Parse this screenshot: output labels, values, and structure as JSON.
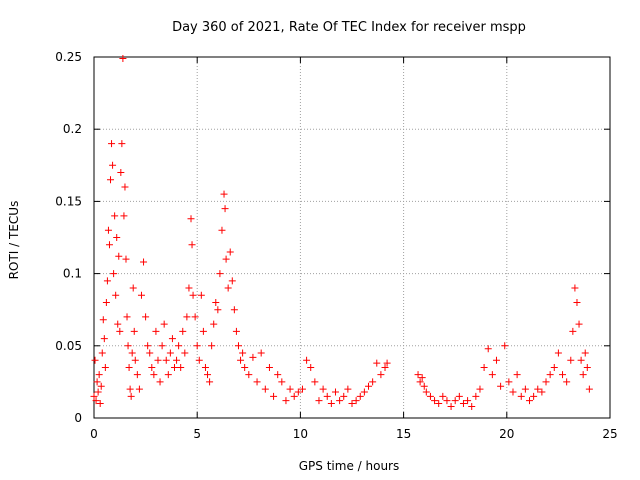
{
  "chart_data": {
    "type": "scatter",
    "title": "Day 360 of 2021, Rate Of TEC Index for receiver mspp",
    "xlabel": "GPS time / hours",
    "ylabel": "ROTI / TECUs",
    "xlim": [
      0,
      25
    ],
    "ylim": [
      0,
      0.25
    ],
    "x_ticks": [
      "0",
      "5",
      "10",
      "15",
      "20",
      "25"
    ],
    "y_ticks": [
      "0",
      "0.05",
      "0.1",
      "0.15",
      "0.2",
      "0.25"
    ],
    "grid": true,
    "marker": "+",
    "marker_color": "#ff0000",
    "series": [
      {
        "points": [
          [
            0.0,
            0.015
          ],
          [
            0.05,
            0.04
          ],
          [
            0.1,
            0.012
          ],
          [
            0.15,
            0.025
          ],
          [
            0.2,
            0.018
          ],
          [
            0.25,
            0.03
          ],
          [
            0.3,
            0.01
          ],
          [
            0.35,
            0.022
          ],
          [
            0.4,
            0.045
          ],
          [
            0.45,
            0.068
          ],
          [
            0.5,
            0.055
          ],
          [
            0.55,
            0.035
          ],
          [
            0.6,
            0.08
          ],
          [
            0.65,
            0.095
          ],
          [
            0.7,
            0.13
          ],
          [
            0.75,
            0.12
          ],
          [
            0.8,
            0.165
          ],
          [
            0.85,
            0.19
          ],
          [
            0.9,
            0.175
          ],
          [
            0.95,
            0.1
          ],
          [
            1.0,
            0.14
          ],
          [
            1.05,
            0.085
          ],
          [
            1.1,
            0.125
          ],
          [
            1.15,
            0.065
          ],
          [
            1.2,
            0.112
          ],
          [
            1.25,
            0.06
          ],
          [
            1.3,
            0.17
          ],
          [
            1.35,
            0.19
          ],
          [
            1.4,
            0.249
          ],
          [
            1.45,
            0.14
          ],
          [
            1.5,
            0.16
          ],
          [
            1.55,
            0.11
          ],
          [
            1.6,
            0.07
          ],
          [
            1.65,
            0.05
          ],
          [
            1.7,
            0.035
          ],
          [
            1.75,
            0.02
          ],
          [
            1.8,
            0.015
          ],
          [
            1.85,
            0.045
          ],
          [
            1.9,
            0.09
          ],
          [
            1.95,
            0.06
          ],
          [
            2.0,
            0.04
          ],
          [
            2.1,
            0.03
          ],
          [
            2.2,
            0.02
          ],
          [
            2.3,
            0.085
          ],
          [
            2.4,
            0.108
          ],
          [
            2.5,
            0.07
          ],
          [
            2.6,
            0.05
          ],
          [
            2.7,
            0.045
          ],
          [
            2.8,
            0.035
          ],
          [
            2.9,
            0.03
          ],
          [
            3.0,
            0.06
          ],
          [
            3.1,
            0.04
          ],
          [
            3.2,
            0.025
          ],
          [
            3.3,
            0.05
          ],
          [
            3.4,
            0.065
          ],
          [
            3.5,
            0.04
          ],
          [
            3.6,
            0.03
          ],
          [
            3.7,
            0.045
          ],
          [
            3.8,
            0.055
          ],
          [
            3.9,
            0.035
          ],
          [
            4.0,
            0.04
          ],
          [
            4.1,
            0.05
          ],
          [
            4.2,
            0.035
          ],
          [
            4.3,
            0.06
          ],
          [
            4.4,
            0.045
          ],
          [
            4.5,
            0.07
          ],
          [
            4.6,
            0.09
          ],
          [
            4.7,
            0.138
          ],
          [
            4.75,
            0.12
          ],
          [
            4.8,
            0.085
          ],
          [
            4.9,
            0.07
          ],
          [
            5.0,
            0.05
          ],
          [
            5.1,
            0.04
          ],
          [
            5.2,
            0.085
          ],
          [
            5.3,
            0.06
          ],
          [
            5.4,
            0.035
          ],
          [
            5.5,
            0.03
          ],
          [
            5.6,
            0.025
          ],
          [
            5.7,
            0.05
          ],
          [
            5.8,
            0.065
          ],
          [
            5.9,
            0.08
          ],
          [
            6.0,
            0.075
          ],
          [
            6.1,
            0.1
          ],
          [
            6.2,
            0.13
          ],
          [
            6.3,
            0.155
          ],
          [
            6.35,
            0.145
          ],
          [
            6.4,
            0.11
          ],
          [
            6.5,
            0.09
          ],
          [
            6.6,
            0.115
          ],
          [
            6.7,
            0.095
          ],
          [
            6.8,
            0.075
          ],
          [
            6.9,
            0.06
          ],
          [
            7.0,
            0.05
          ],
          [
            7.1,
            0.04
          ],
          [
            7.2,
            0.045
          ],
          [
            7.3,
            0.035
          ],
          [
            7.5,
            0.03
          ],
          [
            7.7,
            0.042
          ],
          [
            7.9,
            0.025
          ],
          [
            8.1,
            0.045
          ],
          [
            8.3,
            0.02
          ],
          [
            8.5,
            0.035
          ],
          [
            8.7,
            0.015
          ],
          [
            8.9,
            0.03
          ],
          [
            9.1,
            0.025
          ],
          [
            9.3,
            0.012
          ],
          [
            9.5,
            0.02
          ],
          [
            9.7,
            0.015
          ],
          [
            9.9,
            0.018
          ],
          [
            10.1,
            0.02
          ],
          [
            10.3,
            0.04
          ],
          [
            10.5,
            0.035
          ],
          [
            10.7,
            0.025
          ],
          [
            10.9,
            0.012
          ],
          [
            11.1,
            0.02
          ],
          [
            11.3,
            0.015
          ],
          [
            11.5,
            0.01
          ],
          [
            11.7,
            0.018
          ],
          [
            11.9,
            0.012
          ],
          [
            12.1,
            0.015
          ],
          [
            12.3,
            0.02
          ],
          [
            12.5,
            0.01
          ],
          [
            12.7,
            0.012
          ],
          [
            12.9,
            0.015
          ],
          [
            13.1,
            0.018
          ],
          [
            13.3,
            0.022
          ],
          [
            13.5,
            0.025
          ],
          [
            13.7,
            0.038
          ],
          [
            13.9,
            0.03
          ],
          [
            14.1,
            0.035
          ],
          [
            14.2,
            0.038
          ],
          [
            15.7,
            0.03
          ],
          [
            15.8,
            0.025
          ],
          [
            15.9,
            0.028
          ],
          [
            16.0,
            0.022
          ],
          [
            16.1,
            0.018
          ],
          [
            16.3,
            0.015
          ],
          [
            16.5,
            0.012
          ],
          [
            16.7,
            0.01
          ],
          [
            16.9,
            0.015
          ],
          [
            17.1,
            0.012
          ],
          [
            17.3,
            0.008
          ],
          [
            17.5,
            0.012
          ],
          [
            17.7,
            0.015
          ],
          [
            17.9,
            0.01
          ],
          [
            18.1,
            0.012
          ],
          [
            18.3,
            0.008
          ],
          [
            18.5,
            0.015
          ],
          [
            18.7,
            0.02
          ],
          [
            18.9,
            0.035
          ],
          [
            19.1,
            0.048
          ],
          [
            19.3,
            0.03
          ],
          [
            19.5,
            0.04
          ],
          [
            19.7,
            0.022
          ],
          [
            19.9,
            0.05
          ],
          [
            20.1,
            0.025
          ],
          [
            20.3,
            0.018
          ],
          [
            20.5,
            0.03
          ],
          [
            20.7,
            0.015
          ],
          [
            20.9,
            0.02
          ],
          [
            21.1,
            0.012
          ],
          [
            21.3,
            0.015
          ],
          [
            21.5,
            0.02
          ],
          [
            21.7,
            0.018
          ],
          [
            21.9,
            0.025
          ],
          [
            22.1,
            0.03
          ],
          [
            22.3,
            0.035
          ],
          [
            22.5,
            0.045
          ],
          [
            22.7,
            0.03
          ],
          [
            22.9,
            0.025
          ],
          [
            23.1,
            0.04
          ],
          [
            23.2,
            0.06
          ],
          [
            23.3,
            0.09
          ],
          [
            23.4,
            0.08
          ],
          [
            23.5,
            0.065
          ],
          [
            23.6,
            0.04
          ],
          [
            23.7,
            0.03
          ],
          [
            23.8,
            0.045
          ],
          [
            23.9,
            0.035
          ],
          [
            24.0,
            0.02
          ]
        ]
      }
    ]
  }
}
